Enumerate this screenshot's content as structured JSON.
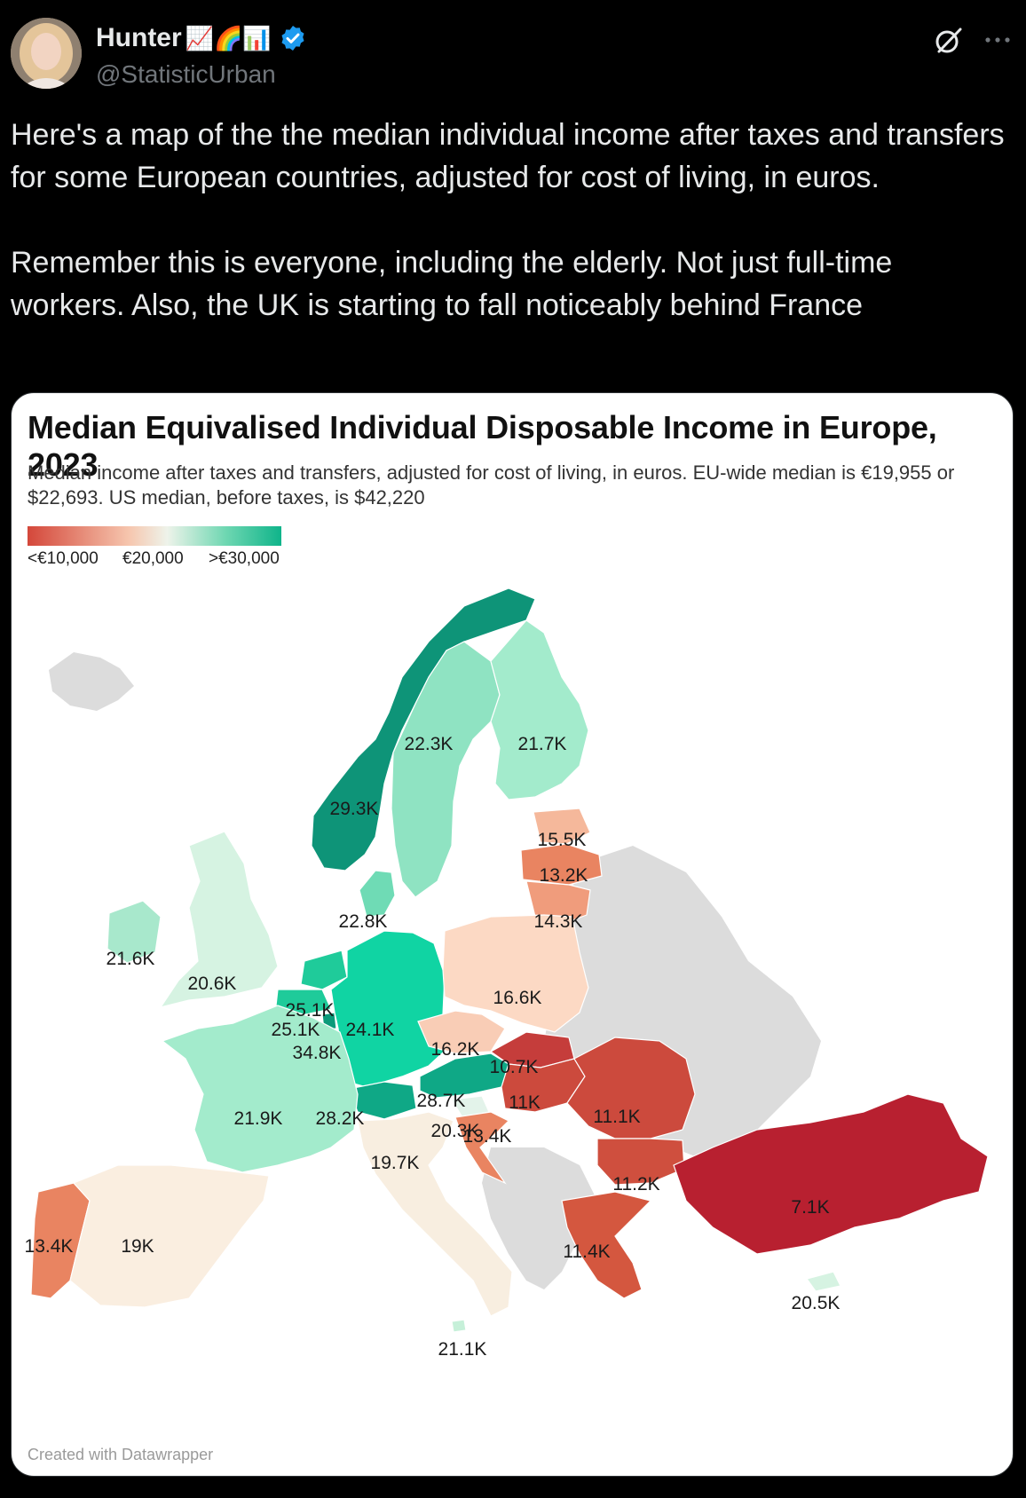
{
  "post": {
    "author_name": "Hunter",
    "author_emojis": "📈🌈📊",
    "handle": "@StatisticUrban",
    "text": "Here's a map of the the median individual income after taxes and transfers for some European countries, adjusted for cost of living, in euros.\n\nRemember this is everyone, including the elderly. Not just full-time workers. Also, the UK is starting to fall noticeably behind France"
  },
  "chart_data": {
    "type": "choropleth map",
    "title": "Median Equivalised Individual Disposable Income in Europe, 2023",
    "subtitle": "Median income after taxes and transfers, adjusted for cost of living, in euros. EU-wide median is €19,955 or $22,693. US median, before taxes, is $42,220",
    "legend": {
      "min_label": "<€10,000",
      "mid_label": "€20,000",
      "max_label": ">€30,000",
      "low_color": "#d4473a",
      "mid_color": "#eef3ea",
      "high_color": "#0fb48a"
    },
    "countries": [
      {
        "name": "Norway",
        "label": "29.3K",
        "value": 29.3,
        "color": "#0e9478"
      },
      {
        "name": "Sweden",
        "label": "22.3K",
        "value": 22.3,
        "color": "#8fe3c2"
      },
      {
        "name": "Finland",
        "label": "21.7K",
        "value": 21.7,
        "color": "#a3ebcc"
      },
      {
        "name": "Estonia",
        "label": "15.5K",
        "value": 15.5,
        "color": "#f5b89b"
      },
      {
        "name": "Latvia",
        "label": "13.2K",
        "value": 13.2,
        "color": "#e98461"
      },
      {
        "name": "Lithuania",
        "label": "14.3K",
        "value": 14.3,
        "color": "#f09c7c"
      },
      {
        "name": "Denmark",
        "label": "22.8K",
        "value": 22.8,
        "color": "#6fdbb5"
      },
      {
        "name": "Ireland",
        "label": "21.6K",
        "value": 21.6,
        "color": "#a8e8cc"
      },
      {
        "name": "United Kingdom",
        "label": "20.6K",
        "value": 20.6,
        "color": "#d6f3e2"
      },
      {
        "name": "Netherlands",
        "label": "25.1K",
        "value": 25.1,
        "color": "#1fcb9a"
      },
      {
        "name": "Belgium",
        "label": "25.1K",
        "value": 25.1,
        "color": "#1fcb9a"
      },
      {
        "name": "Luxembourg",
        "label": "34.8K",
        "value": 34.8,
        "color": "#0b9a7a"
      },
      {
        "name": "Germany",
        "label": "24.1K",
        "value": 24.1,
        "color": "#10d4a3"
      },
      {
        "name": "Poland",
        "label": "16.6K",
        "value": 16.6,
        "color": "#fcd9c4"
      },
      {
        "name": "Czechia",
        "label": "16.2K",
        "value": 16.2,
        "color": "#f9cdb6"
      },
      {
        "name": "Slovakia",
        "label": "10.7K",
        "value": 10.7,
        "color": "#c53d3b"
      },
      {
        "name": "Austria",
        "label": "28.7K",
        "value": 28.7,
        "color": "#0fa886"
      },
      {
        "name": "Hungary",
        "label": "11K",
        "value": 11,
        "color": "#cc4a3d"
      },
      {
        "name": "Romania",
        "label": "11.1K",
        "value": 11.1,
        "color": "#cc4a3d"
      },
      {
        "name": "Switzerland",
        "label": "28.2K",
        "value": 28.2,
        "color": "#0fa886"
      },
      {
        "name": "Slovenia",
        "label": "20.3K",
        "value": 20.3,
        "color": "#e3f3ea"
      },
      {
        "name": "Croatia",
        "label": "13.4K",
        "value": 13.4,
        "color": "#e98461"
      },
      {
        "name": "France",
        "label": "21.9K",
        "value": 21.9,
        "color": "#a3ebcc"
      },
      {
        "name": "Italy",
        "label": "19.7K",
        "value": 19.7,
        "color": "#f8eee0"
      },
      {
        "name": "Bulgaria",
        "label": "11.2K",
        "value": 11.2,
        "color": "#cf4f3e"
      },
      {
        "name": "Greece",
        "label": "11.4K",
        "value": 11.4,
        "color": "#d4573f"
      },
      {
        "name": "Turkey",
        "label": "7.1K",
        "value": 7.1,
        "color": "#b82030"
      },
      {
        "name": "Cyprus",
        "label": "20.5K",
        "value": 20.5,
        "color": "#d6f3e2"
      },
      {
        "name": "Malta",
        "label": "21.1K",
        "value": 21.1,
        "color": "#c6f0d9"
      },
      {
        "name": "Portugal",
        "label": "13.4K",
        "value": 13.4,
        "color": "#e98461"
      },
      {
        "name": "Spain",
        "label": "19K",
        "value": 19,
        "color": "#faeee0"
      }
    ],
    "no_data_color": "#dcdcdc"
  },
  "card": {
    "credit": "Created with Datawrapper"
  },
  "icons": {
    "verified": "verified-badge-icon",
    "grok": "grok-icon",
    "more": "more-icon"
  }
}
